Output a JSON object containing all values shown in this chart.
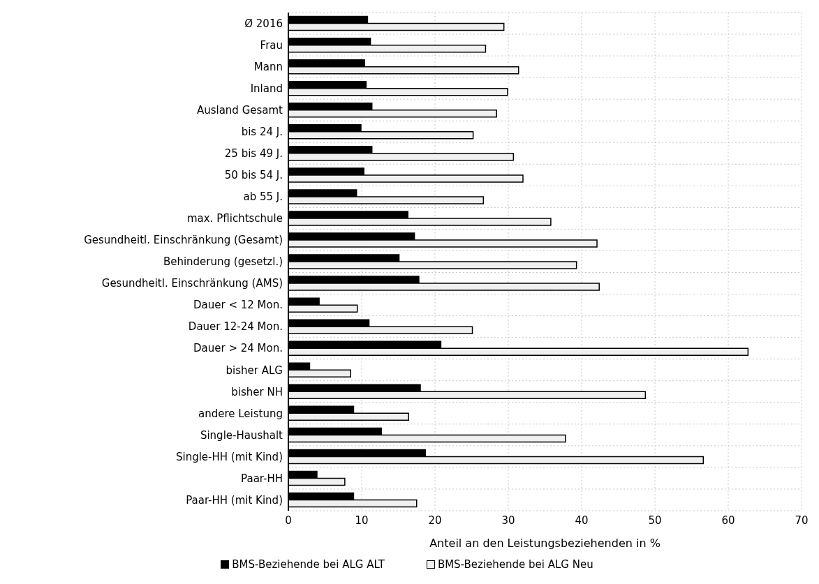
{
  "chart_data": {
    "type": "bar",
    "orientation": "horizontal",
    "xlabel": "Anteil an den Leistungsbeziehenden in %",
    "categories": [
      "Ø 2016",
      "Frau",
      "Mann",
      "Inland",
      "Ausland Gesamt",
      "bis 24 J.",
      "25 bis 49 J.",
      "50 bis 54 J.",
      "ab 55 J.",
      "max. Pflichtschule",
      "Gesundheitl. Einschränkung (Gesamt)",
      "Behinderung (gesetzl.)",
      "Gesundheitl. Einschränkung (AMS)",
      "Dauer < 12 Mon.",
      "Dauer 12-24 Mon.",
      "Dauer > 24 Mon.",
      "bisher ALG",
      "bisher NH",
      "andere Leistung",
      "Single-Haushalt",
      "Single-HH (mit Kind)",
      "Paar-HH",
      "Paar-HH (mit Kind)"
    ],
    "series": [
      {
        "name": "BMS-Beziehende bei ALG ALT",
        "color": "#000000",
        "values": [
          10.8,
          11.2,
          10.4,
          10.6,
          11.4,
          9.9,
          11.4,
          10.3,
          9.3,
          16.3,
          17.2,
          15.1,
          17.8,
          4.2,
          11.0,
          20.8,
          2.9,
          18.0,
          8.9,
          12.7,
          18.7,
          3.9,
          8.9
        ]
      },
      {
        "name": "BMS-Beziehende bei ALG Neu",
        "color": "#f0f0f0",
        "values": [
          29.4,
          26.9,
          31.4,
          29.9,
          28.4,
          25.2,
          30.7,
          32.0,
          26.6,
          35.8,
          42.1,
          39.3,
          42.4,
          9.4,
          25.1,
          62.7,
          8.5,
          48.7,
          16.4,
          37.8,
          56.6,
          7.7,
          17.5
        ]
      }
    ],
    "xlim": [
      0,
      70
    ],
    "xticks": [
      0,
      10,
      20,
      30,
      40,
      50,
      60,
      70
    ],
    "grid": true,
    "legend": "bottom"
  }
}
